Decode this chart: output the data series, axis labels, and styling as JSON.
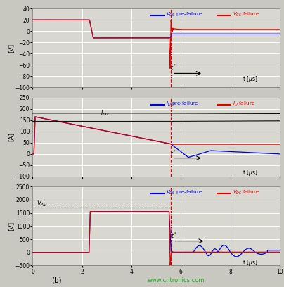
{
  "dashed_line_x": 5.6,
  "blue_color": "#0000dd",
  "red_color": "#dd0000",
  "bg_color": "#c8c8c0",
  "axes_bg": "#d8d8d0",
  "grid_color": "#ffffff",
  "subplot1": {
    "ylabel": "[V]",
    "ylim": [
      -100,
      40
    ],
    "yticks": [
      -100,
      -80,
      -60,
      -40,
      -20,
      0,
      20,
      40
    ],
    "xlim": [
      0,
      10
    ],
    "xticks": [
      0,
      2,
      4,
      6,
      8,
      10
    ]
  },
  "subplot2": {
    "ylabel": "[A]",
    "ylim": [
      -100,
      250
    ],
    "yticks": [
      -100,
      -50,
      0,
      50,
      100,
      150,
      200,
      250
    ],
    "xlim": [
      0,
      10
    ],
    "xticks": [
      0,
      2,
      4,
      6,
      8,
      10
    ]
  },
  "subplot3": {
    "ylabel": "[V]",
    "ylim": [
      -500,
      2500
    ],
    "yticks": [
      -500,
      0,
      500,
      1000,
      1500,
      2000,
      2500
    ],
    "xlim": [
      0,
      10
    ],
    "xticks": [
      0,
      2,
      4,
      6,
      8,
      10
    ]
  }
}
